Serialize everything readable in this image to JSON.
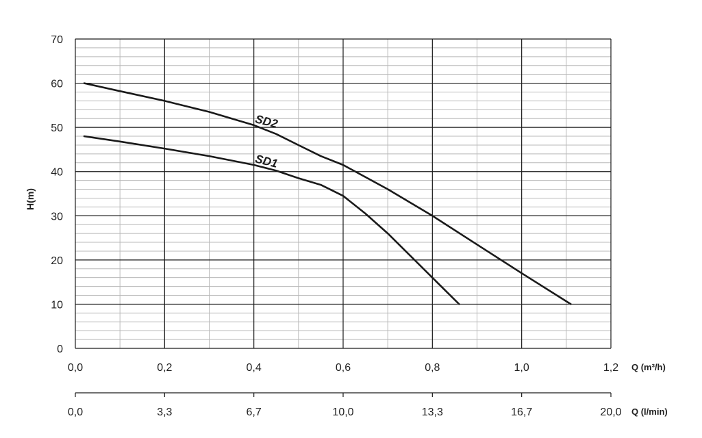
{
  "chart_data": {
    "type": "line",
    "ylabel": "H(m)",
    "xlabel_primary": "Q (m³/h)",
    "xlabel_secondary": "Q (l/min)",
    "xlim": [
      0,
      1.2
    ],
    "ylim": [
      0,
      70
    ],
    "x_ticks": [
      "0,0",
      "0,2",
      "0,4",
      "0,6",
      "0,8",
      "1,0",
      "1,2"
    ],
    "x_ticks_secondary": [
      "0,0",
      "3,3",
      "6,7",
      "10,0",
      "13,3",
      "16,7",
      "20,0"
    ],
    "y_ticks": [
      "0",
      "10",
      "20",
      "30",
      "40",
      "50",
      "60",
      "70"
    ],
    "grid": true,
    "series": [
      {
        "name": "SD2",
        "x": [
          0.02,
          0.1,
          0.2,
          0.3,
          0.4,
          0.45,
          0.5,
          0.55,
          0.6,
          0.7,
          0.8,
          0.9,
          1.0,
          1.11
        ],
        "y": [
          60,
          58.2,
          56,
          53.5,
          50.5,
          48.5,
          46,
          43.5,
          41.5,
          36,
          30,
          23.5,
          17,
          10
        ]
      },
      {
        "name": "SD1",
        "x": [
          0.02,
          0.1,
          0.2,
          0.3,
          0.4,
          0.45,
          0.5,
          0.55,
          0.6,
          0.65,
          0.7,
          0.75,
          0.8,
          0.86
        ],
        "y": [
          48,
          46.8,
          45.2,
          43.5,
          41.5,
          40.2,
          38.5,
          37,
          34.5,
          30.5,
          26,
          21,
          16,
          10
        ]
      }
    ]
  }
}
